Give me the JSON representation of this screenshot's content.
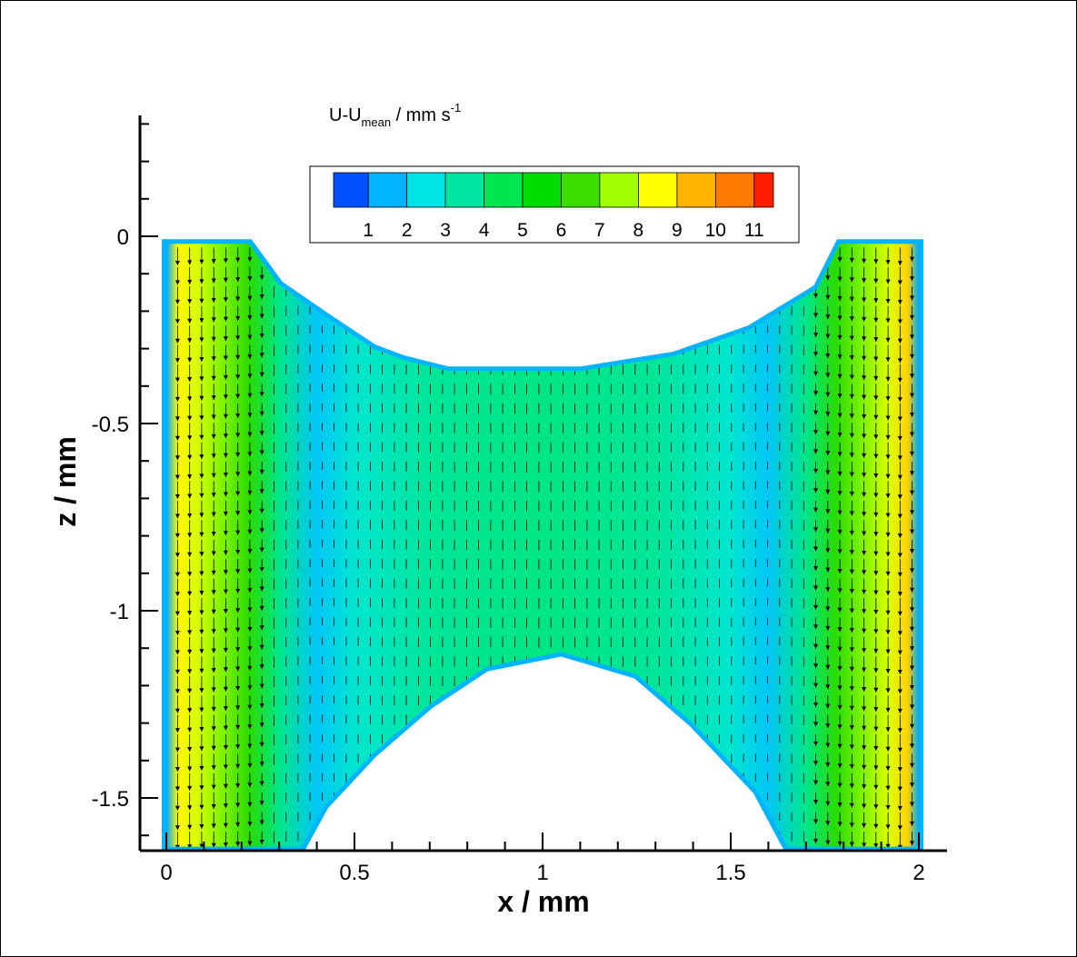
{
  "chart_data": {
    "type": "heatmap",
    "xlabel": "x / mm",
    "ylabel": "z / mm",
    "xlim": [
      -0.05,
      2.07
    ],
    "ylim": [
      -1.63,
      0.32
    ],
    "x_ticks": [
      0,
      0.5,
      1,
      1.5,
      2
    ],
    "x_tick_labels": [
      "0",
      "0.5",
      "1",
      "1.5",
      "2"
    ],
    "y_ticks": [
      0,
      -0.5,
      -1,
      -1.5
    ],
    "y_tick_labels": [
      "0",
      "-0.5",
      "-1",
      "-1.5"
    ],
    "colorbar": {
      "title_main": "U-U",
      "title_sub": "mean",
      "title_unit": " / mm s",
      "title_sup": "-1",
      "min": 0.1,
      "max": 11.5,
      "labels": [
        "1",
        "2",
        "3",
        "4",
        "5",
        "6",
        "7",
        "8",
        "9",
        "10",
        "11"
      ],
      "label_values": [
        1,
        2,
        3,
        4,
        5,
        6,
        7,
        8,
        9,
        10,
        11
      ],
      "colors": [
        "#0050ff",
        "#00b4ff",
        "#00e6e6",
        "#00e6a0",
        "#00e650",
        "#00dc00",
        "#3cdc00",
        "#a0ff00",
        "#ffff00",
        "#ffb400",
        "#ff7800",
        "#ff1e00"
      ]
    },
    "domain": {
      "top_boundary": [
        [
          0.0,
          -0.02
        ],
        [
          0.22,
          -0.02
        ],
        [
          0.3,
          -0.13
        ],
        [
          0.43,
          -0.22
        ],
        [
          0.55,
          -0.3
        ],
        [
          0.63,
          -0.33
        ],
        [
          0.75,
          -0.36
        ],
        [
          1.1,
          -0.36
        ],
        [
          1.35,
          -0.32
        ],
        [
          1.55,
          -0.25
        ],
        [
          1.73,
          -0.14
        ],
        [
          1.79,
          -0.02
        ],
        [
          2.0,
          -0.02
        ]
      ],
      "bottom_boundary": [
        [
          2.0,
          -1.63
        ],
        [
          1.65,
          -1.63
        ],
        [
          1.57,
          -1.48
        ],
        [
          1.4,
          -1.3
        ],
        [
          1.25,
          -1.17
        ],
        [
          1.05,
          -1.11
        ],
        [
          0.85,
          -1.15
        ],
        [
          0.7,
          -1.25
        ],
        [
          0.55,
          -1.38
        ],
        [
          0.42,
          -1.52
        ],
        [
          0.36,
          -1.63
        ],
        [
          0.0,
          -1.63
        ]
      ]
    },
    "velocity_profile": {
      "x": [
        0.0,
        0.03,
        0.08,
        0.15,
        0.22,
        0.3,
        0.4,
        0.5,
        0.7,
        1.0,
        1.3,
        1.5,
        1.6,
        1.7,
        1.78,
        1.85,
        1.92,
        1.97,
        2.0
      ],
      "value": [
        1.0,
        8.5,
        8.0,
        7.0,
        6.0,
        3.5,
        1.5,
        2.5,
        3.3,
        3.6,
        3.3,
        2.5,
        1.5,
        3.5,
        6.0,
        7.0,
        8.0,
        9.0,
        1.0
      ]
    }
  }
}
